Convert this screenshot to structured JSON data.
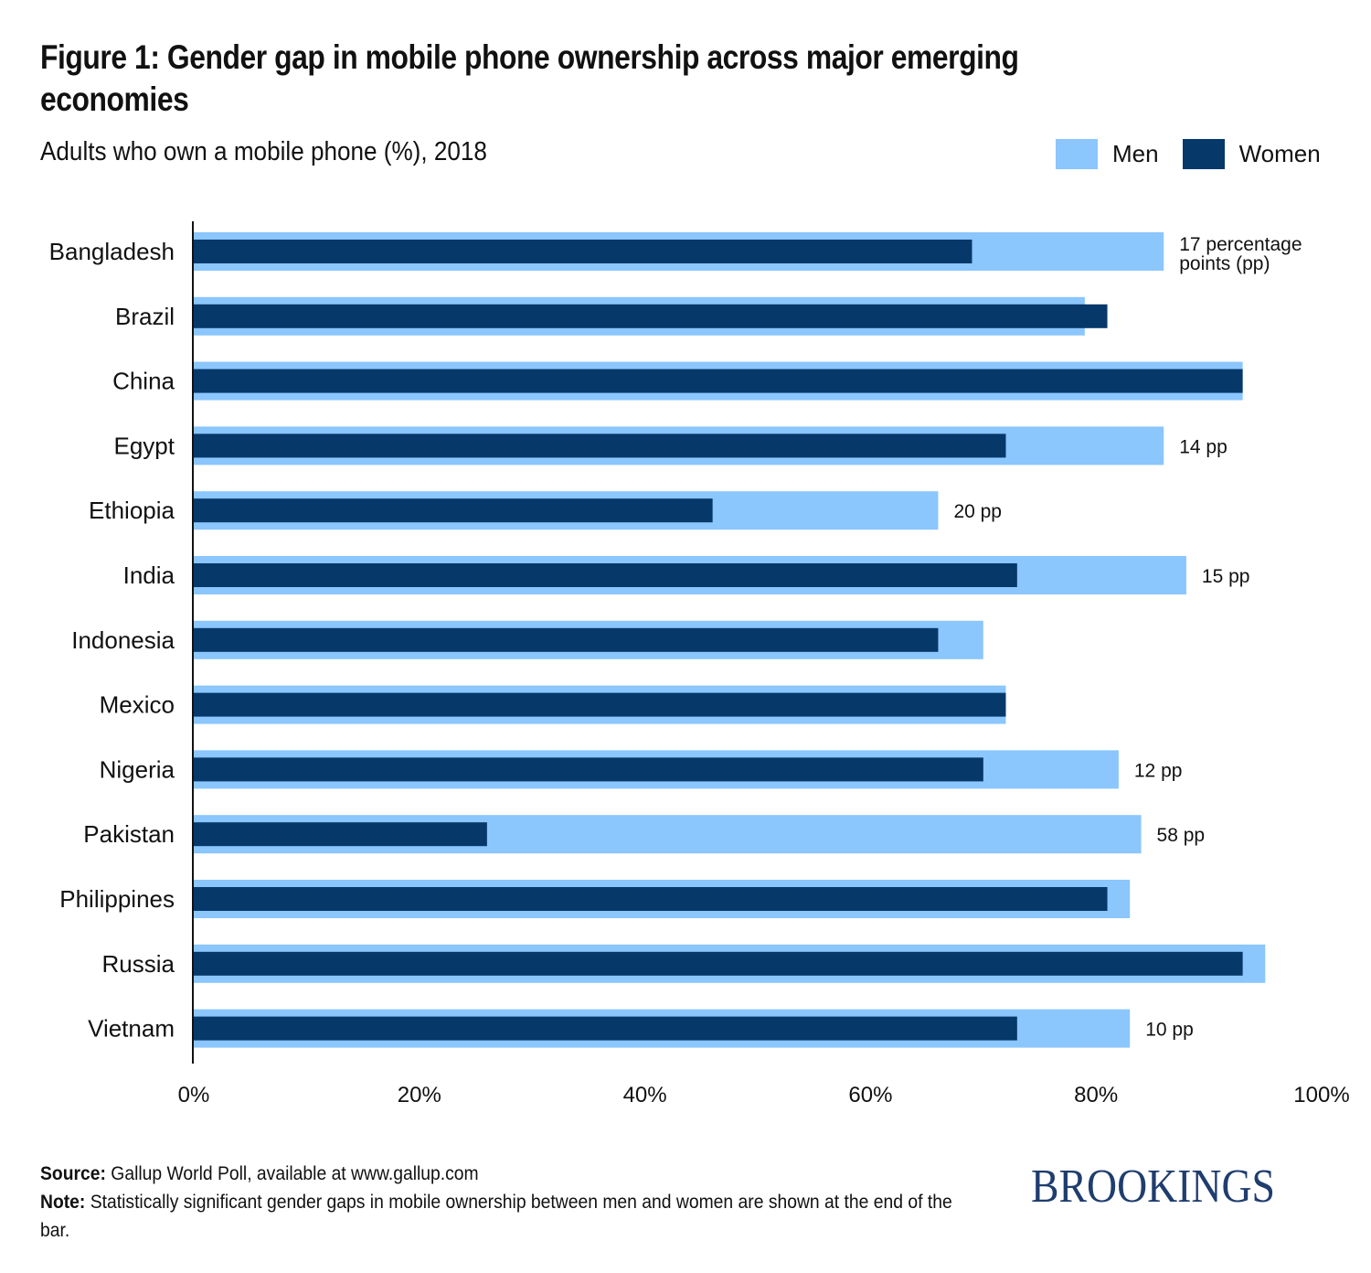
{
  "header": {
    "title": "Figure 1: Gender gap in mobile phone ownership across major emerging economies",
    "subtitle": "Adults who own a mobile phone (%), 2018"
  },
  "legend": [
    {
      "label": "Men",
      "color": "#8bc6fd"
    },
    {
      "label": "Women",
      "color": "#06386a"
    }
  ],
  "footer": {
    "source_label": "Source:",
    "source_text": " Gallup World Poll, available at www.gallup.com",
    "note_label": "Note:",
    "note_text": " Statistically significant gender gaps in mobile ownership between men and women are shown at the end of the bar."
  },
  "logo": "BROOKINGS",
  "chart_data": {
    "type": "bar",
    "orientation": "horizontal",
    "title": "Figure 1: Gender gap in mobile phone ownership across major emerging economies",
    "subtitle": "Adults who own a mobile phone (%), 2018",
    "xlabel": "",
    "ylabel": "",
    "xlim": [
      0,
      100
    ],
    "xticks": [
      "0%",
      "20%",
      "40%",
      "60%",
      "80%",
      "100%"
    ],
    "xtick_values": [
      0,
      20,
      40,
      60,
      80,
      100
    ],
    "grid": false,
    "legend_position": "top-right",
    "categories": [
      "Bangladesh",
      "Brazil",
      "China",
      "Egypt",
      "Ethiopia",
      "India",
      "Indonesia",
      "Mexico",
      "Nigeria",
      "Pakistan",
      "Philippines",
      "Russia",
      "Vietnam"
    ],
    "series": [
      {
        "name": "Men",
        "color": "#8bc6fd",
        "values": [
          86,
          79,
          93,
          86,
          66,
          88,
          70,
          72,
          82,
          84,
          83,
          95,
          83
        ]
      },
      {
        "name": "Women",
        "color": "#06386a",
        "values": [
          69,
          81,
          93,
          72,
          46,
          73,
          66,
          72,
          70,
          26,
          81,
          93,
          73
        ]
      }
    ],
    "annotations": [
      "17 percentage points (pp)",
      "",
      "",
      "14 pp",
      "20 pp",
      "15 pp",
      "",
      "",
      "12 pp",
      "58 pp",
      "",
      "",
      "10 pp"
    ]
  }
}
